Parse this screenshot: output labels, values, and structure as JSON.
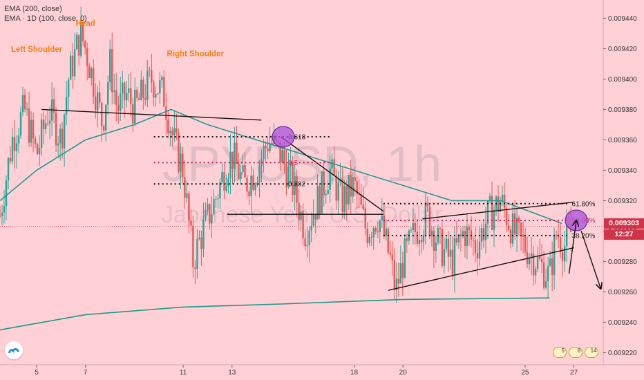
{
  "indicators": {
    "ema200_label": "EMA (200, close)",
    "ema100_label": "EMA · 1D (100, close, 0)"
  },
  "watermark": {
    "symbol": "JPYUSD, 1h",
    "description": "Japanese Yen / U.S. Dollar"
  },
  "price_tag": {
    "price": "0.009303",
    "countdown": "12:27"
  },
  "events": [
    "5",
    "8",
    "14"
  ],
  "colors": {
    "background": "#ffd1d7",
    "candle_up": "#26a69a",
    "candle_down": "#ef5350",
    "ema100": "#1e9b92",
    "ema200": "#1a9a8a",
    "fib_marker": "#c21b5c",
    "price_tag": "#d0344a"
  },
  "chart_data": {
    "type": "candlestick",
    "symbol": "JPYUSD",
    "timeframe": "1h",
    "y_axis": {
      "ticks": [
        0.00922,
        0.00924,
        0.00926,
        0.00928,
        0.0093,
        0.00932,
        0.00934,
        0.00936,
        0.00938,
        0.0094,
        0.00942,
        0.00944
      ],
      "tick_labels": [
        "0.009220",
        "0.009240",
        "0.009260",
        "0.009280",
        "0.009300",
        "0.009320",
        "0.009340",
        "0.009360",
        "0.009380",
        "0.009400",
        "0.009420",
        "0.009440"
      ],
      "range": [
        0.009212,
        0.009452
      ]
    },
    "x_axis": {
      "day_range": [
        3.5,
        28.2
      ],
      "ticks": [
        5,
        7,
        11,
        13,
        18,
        20,
        25,
        27
      ],
      "tick_labels": [
        "5",
        "7",
        "11",
        "13",
        "18",
        "20",
        "25",
        "27"
      ]
    },
    "price_path": [
      [
        3.5,
        0.00931
      ],
      [
        4.0,
        0.00936
      ],
      [
        4.5,
        0.00938
      ],
      [
        5.0,
        0.00935
      ],
      [
        5.5,
        0.00938
      ],
      [
        6.0,
        0.00936
      ],
      [
        6.3,
        0.0094
      ],
      [
        6.8,
        0.00943
      ],
      [
        7.0,
        0.00942
      ],
      [
        7.3,
        0.0094
      ],
      [
        7.7,
        0.00937
      ],
      [
        8.0,
        0.00941
      ],
      [
        8.3,
        0.00938
      ],
      [
        8.7,
        0.00939
      ],
      [
        9.0,
        0.00938
      ],
      [
        9.7,
        0.0094
      ],
      [
        10.2,
        0.00939
      ],
      [
        10.6,
        0.00936
      ],
      [
        11.0,
        0.00934
      ],
      [
        11.4,
        0.00928
      ],
      [
        11.8,
        0.0093
      ],
      [
        12.3,
        0.00932
      ],
      [
        12.7,
        0.00934
      ],
      [
        13.0,
        0.00935
      ],
      [
        13.5,
        0.00933
      ],
      [
        14.0,
        0.00934
      ],
      [
        14.5,
        0.00936
      ],
      [
        15.0,
        0.00935
      ],
      [
        15.5,
        0.00933
      ],
      [
        16.0,
        0.0093
      ],
      [
        16.5,
        0.00932
      ],
      [
        17.0,
        0.00934
      ],
      [
        17.5,
        0.00932
      ],
      [
        18.0,
        0.00933
      ],
      [
        18.5,
        0.0093
      ],
      [
        19.0,
        0.00931
      ],
      [
        19.5,
        0.00928
      ],
      [
        19.7,
        0.00926
      ],
      [
        20.0,
        0.00928
      ],
      [
        20.5,
        0.0093
      ],
      [
        21.0,
        0.00931
      ],
      [
        21.5,
        0.00929
      ],
      [
        22.0,
        0.00928
      ],
      [
        22.5,
        0.0093
      ],
      [
        23.0,
        0.00929
      ],
      [
        23.5,
        0.00931
      ],
      [
        24.0,
        0.00932
      ],
      [
        24.5,
        0.0093
      ],
      [
        25.0,
        0.00929
      ],
      [
        25.5,
        0.00928
      ],
      [
        26.0,
        0.00927
      ],
      [
        26.3,
        0.0093
      ],
      [
        26.6,
        0.00929
      ],
      [
        26.9,
        0.0093
      ]
    ],
    "ema100": [
      [
        3.5,
        0.00932
      ],
      [
        5.0,
        0.00934
      ],
      [
        7.0,
        0.00936
      ],
      [
        9.0,
        0.00937
      ],
      [
        10.5,
        0.00938
      ],
      [
        12.0,
        0.00937
      ],
      [
        14.0,
        0.00936
      ],
      [
        16.0,
        0.00935
      ],
      [
        18.0,
        0.00934
      ],
      [
        20.0,
        0.00933
      ],
      [
        22.0,
        0.00932
      ],
      [
        24.0,
        0.00932
      ],
      [
        26.5,
        0.009305
      ]
    ],
    "ema200": [
      [
        3.5,
        0.009235
      ],
      [
        7.0,
        0.009245
      ],
      [
        11.0,
        0.00925
      ],
      [
        15.0,
        0.009252
      ],
      [
        20.0,
        0.009255
      ],
      [
        26.0,
        0.009256
      ]
    ],
    "labels": [
      {
        "text": "Left Shoulder",
        "day": 5.0,
        "price": 0.009418
      },
      {
        "text": "Head",
        "day": 7.0,
        "price": 0.009435
      },
      {
        "text": "Right Shoulder",
        "day": 11.5,
        "price": 0.009415
      }
    ],
    "neckline": [
      [
        5.2,
        0.00938
      ],
      [
        14.2,
        0.009373
      ]
    ],
    "fib_left": {
      "x_range": [
        9.8,
        17.0
      ],
      "levels": [
        {
          "label": "0.618",
          "price": 0.009362,
          "style": "black"
        },
        {
          "label": "0.5",
          "price": 0.009345,
          "style": "magenta"
        },
        {
          "label": "0.382",
          "price": 0.009331,
          "style": "black"
        }
      ]
    },
    "fib_right": {
      "x_range": [
        19.2,
        26.8
      ],
      "levels": [
        {
          "label": "61.80%",
          "price": 0.009318,
          "style": "black"
        },
        {
          "label": "50.00%",
          "price": 0.009307,
          "style": "magenta"
        },
        {
          "label": "38.20%",
          "price": 0.009297,
          "style": "black"
        }
      ]
    },
    "trend_lines": [
      [
        [
          15.0,
          0.009362
        ],
        [
          19.2,
          0.009313
        ]
      ],
      [
        [
          12.8,
          0.009311
        ],
        [
          19.2,
          0.009311
        ]
      ],
      [
        [
          19.4,
          0.009261
        ],
        [
          27.0,
          0.009289
        ]
      ],
      [
        [
          20.8,
          0.009308
        ],
        [
          27.0,
          0.009319
        ]
      ]
    ],
    "markers": [
      {
        "day": 15.1,
        "price": 0.009362
      },
      {
        "day": 27.1,
        "price": 0.009307
      }
    ],
    "arrows": [
      [
        [
          26.8,
          0.009272
        ],
        [
          27.1,
          0.009307
        ]
      ],
      [
        [
          27.3,
          0.0093
        ],
        [
          28.1,
          0.009262
        ]
      ]
    ]
  }
}
